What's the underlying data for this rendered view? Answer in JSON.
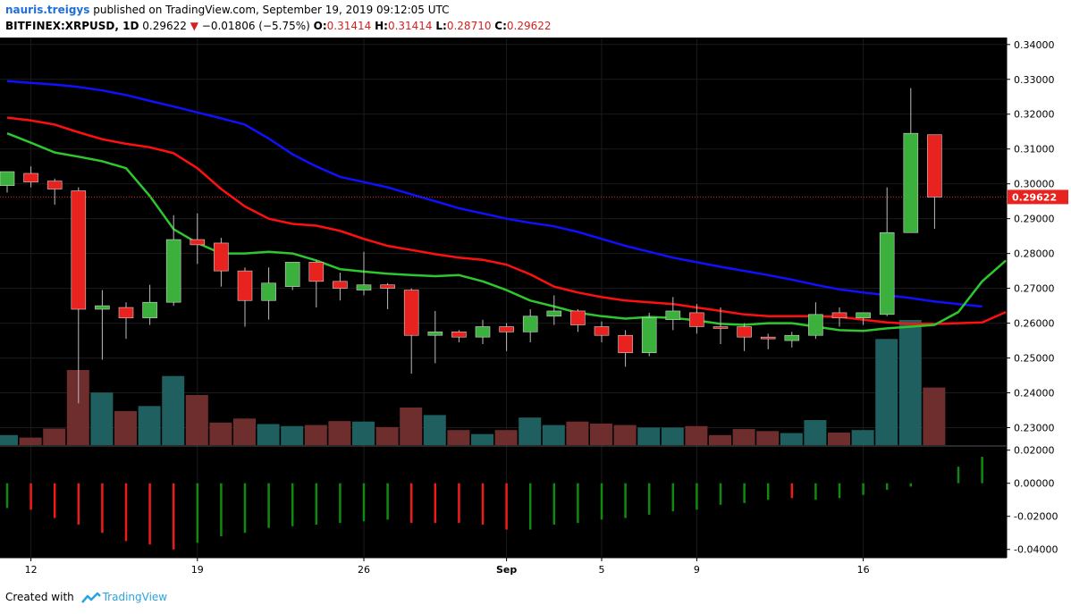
{
  "header": {
    "author": "nauris.treigys",
    "published_text": "published on TradingView.com, September 19, 2019 09:12:05 UTC",
    "symbol": "BITFINEX:XRPUSD, 1D",
    "last": "0.29622",
    "change": "−0.01806 (−5.75%)",
    "o_label": "O:",
    "o_value": "0.31414",
    "h_label": "H:",
    "h_value": "0.31414",
    "l_label": "L:",
    "l_value": "0.28710",
    "c_label": "C:",
    "c_value": "0.29622"
  },
  "footer": {
    "created_with": "Created with",
    "brand": "TradingView"
  },
  "colors": {
    "up": "#3cb03c",
    "down": "#e8231f",
    "ma_blue": "#1010ff",
    "ma_red": "#ff1010",
    "ma_green": "#2ec72e",
    "vol_up": "#1f5f5f",
    "vol_down": "#6e2e2e",
    "price_label_bg": "#e8231f"
  },
  "chart_data": {
    "type": "candlestick",
    "price_axis": {
      "min": 0.225,
      "max": 0.342,
      "ticks": [
        "0.34000",
        "0.33000",
        "0.32000",
        "0.31000",
        "0.30000",
        "0.29000",
        "0.28000",
        "0.27000",
        "0.26000",
        "0.25000",
        "0.24000",
        "0.23000"
      ]
    },
    "current_price_label": "0.29622",
    "current_price": 0.29622,
    "x_ticks": [
      {
        "index": 1,
        "label": "12"
      },
      {
        "index": 8,
        "label": "19"
      },
      {
        "index": 15,
        "label": "26"
      },
      {
        "index": 21,
        "label": "Sep"
      },
      {
        "index": 25,
        "label": "5"
      },
      {
        "index": 29,
        "label": "9"
      },
      {
        "index": 36,
        "label": "16"
      }
    ],
    "candles": [
      {
        "o": 0.2995,
        "h": 0.303,
        "l": 0.2975,
        "c": 0.3035
      },
      {
        "o": 0.303,
        "h": 0.305,
        "l": 0.299,
        "c": 0.3005
      },
      {
        "o": 0.3008,
        "h": 0.3015,
        "l": 0.294,
        "c": 0.2985
      },
      {
        "o": 0.298,
        "h": 0.299,
        "l": 0.237,
        "c": 0.264
      },
      {
        "o": 0.264,
        "h": 0.2695,
        "l": 0.2495,
        "c": 0.265
      },
      {
        "o": 0.2645,
        "h": 0.266,
        "l": 0.2555,
        "c": 0.2615
      },
      {
        "o": 0.2615,
        "h": 0.271,
        "l": 0.2595,
        "c": 0.266
      },
      {
        "o": 0.266,
        "h": 0.291,
        "l": 0.265,
        "c": 0.284
      },
      {
        "o": 0.284,
        "h": 0.2915,
        "l": 0.277,
        "c": 0.2825
      },
      {
        "o": 0.283,
        "h": 0.2845,
        "l": 0.2705,
        "c": 0.275
      },
      {
        "o": 0.275,
        "h": 0.276,
        "l": 0.259,
        "c": 0.2665
      },
      {
        "o": 0.2665,
        "h": 0.276,
        "l": 0.261,
        "c": 0.2715
      },
      {
        "o": 0.2705,
        "h": 0.2775,
        "l": 0.2695,
        "c": 0.2775
      },
      {
        "o": 0.2775,
        "h": 0.278,
        "l": 0.2645,
        "c": 0.272
      },
      {
        "o": 0.272,
        "h": 0.2745,
        "l": 0.2665,
        "c": 0.27
      },
      {
        "o": 0.2695,
        "h": 0.2805,
        "l": 0.268,
        "c": 0.271
      },
      {
        "o": 0.271,
        "h": 0.2715,
        "l": 0.264,
        "c": 0.27
      },
      {
        "o": 0.2695,
        "h": 0.27,
        "l": 0.2455,
        "c": 0.2565
      },
      {
        "o": 0.2565,
        "h": 0.2635,
        "l": 0.2485,
        "c": 0.2575
      },
      {
        "o": 0.2575,
        "h": 0.258,
        "l": 0.2545,
        "c": 0.256
      },
      {
        "o": 0.256,
        "h": 0.261,
        "l": 0.254,
        "c": 0.259
      },
      {
        "o": 0.259,
        "h": 0.26,
        "l": 0.252,
        "c": 0.2575
      },
      {
        "o": 0.2575,
        "h": 0.264,
        "l": 0.2545,
        "c": 0.262
      },
      {
        "o": 0.262,
        "h": 0.268,
        "l": 0.2595,
        "c": 0.2635
      },
      {
        "o": 0.2635,
        "h": 0.264,
        "l": 0.2575,
        "c": 0.2595
      },
      {
        "o": 0.259,
        "h": 0.2605,
        "l": 0.2545,
        "c": 0.2565
      },
      {
        "o": 0.2565,
        "h": 0.258,
        "l": 0.2475,
        "c": 0.2515
      },
      {
        "o": 0.2515,
        "h": 0.263,
        "l": 0.2505,
        "c": 0.2615
      },
      {
        "o": 0.261,
        "h": 0.2675,
        "l": 0.258,
        "c": 0.2635
      },
      {
        "o": 0.263,
        "h": 0.2655,
        "l": 0.257,
        "c": 0.259
      },
      {
        "o": 0.259,
        "h": 0.2645,
        "l": 0.254,
        "c": 0.2585
      },
      {
        "o": 0.259,
        "h": 0.26,
        "l": 0.252,
        "c": 0.256
      },
      {
        "o": 0.256,
        "h": 0.257,
        "l": 0.2525,
        "c": 0.2555
      },
      {
        "o": 0.255,
        "h": 0.2575,
        "l": 0.253,
        "c": 0.2565
      },
      {
        "o": 0.2565,
        "h": 0.266,
        "l": 0.2555,
        "c": 0.2625
      },
      {
        "o": 0.263,
        "h": 0.2645,
        "l": 0.259,
        "c": 0.2615
      },
      {
        "o": 0.2615,
        "h": 0.263,
        "l": 0.2595,
        "c": 0.263
      },
      {
        "o": 0.2625,
        "h": 0.299,
        "l": 0.262,
        "c": 0.286
      },
      {
        "o": 0.286,
        "h": 0.3275,
        "l": 0.286,
        "c": 0.3145
      },
      {
        "o": 0.3141,
        "h": 0.3141,
        "l": 0.2871,
        "c": 0.2962
      }
    ],
    "volume": [
      0.2,
      0.15,
      0.33,
      1.5,
      1.05,
      0.68,
      0.78,
      1.38,
      1.0,
      0.45,
      0.53,
      0.42,
      0.38,
      0.4,
      0.48,
      0.47,
      0.36,
      0.75,
      0.6,
      0.3,
      0.22,
      0.3,
      0.55,
      0.4,
      0.47,
      0.43,
      0.4,
      0.35,
      0.35,
      0.38,
      0.2,
      0.32,
      0.28,
      0.24,
      0.5,
      0.25,
      0.3,
      2.12,
      2.5,
      1.15
    ],
    "ma_blue": [
      0.3295,
      0.329,
      0.3285,
      0.3278,
      0.3268,
      0.3255,
      0.3238,
      0.3222,
      0.3205,
      0.3188,
      0.317,
      0.313,
      0.3085,
      0.305,
      0.302,
      0.3005,
      0.299,
      0.297,
      0.295,
      0.293,
      0.2915,
      0.29,
      0.2888,
      0.2878,
      0.2862,
      0.2842,
      0.2822,
      0.2805,
      0.2788,
      0.2775,
      0.2762,
      0.275,
      0.2738,
      0.2725,
      0.271,
      0.2697,
      0.2688,
      0.268,
      0.2672,
      0.2662,
      0.2655,
      0.2648
    ],
    "ma_red": [
      0.319,
      0.3182,
      0.317,
      0.3148,
      0.3128,
      0.3115,
      0.3105,
      0.3088,
      0.3045,
      0.2985,
      0.2935,
      0.29,
      0.2885,
      0.288,
      0.2865,
      0.2842,
      0.2822,
      0.281,
      0.2798,
      0.2788,
      0.2782,
      0.2768,
      0.274,
      0.2705,
      0.2688,
      0.2675,
      0.2665,
      0.266,
      0.2655,
      0.2645,
      0.2635,
      0.2625,
      0.262,
      0.262,
      0.262,
      0.2618,
      0.261,
      0.2602,
      0.2598,
      0.2598,
      0.26,
      0.2602,
      0.2632
    ],
    "ma_green": [
      0.3145,
      0.3118,
      0.309,
      0.3078,
      0.3065,
      0.3045,
      0.2965,
      0.287,
      0.283,
      0.28,
      0.28,
      0.2805,
      0.28,
      0.278,
      0.2755,
      0.2748,
      0.2742,
      0.2738,
      0.2735,
      0.2738,
      0.272,
      0.2695,
      0.2665,
      0.2648,
      0.263,
      0.262,
      0.2613,
      0.2618,
      0.2615,
      0.2608,
      0.2598,
      0.2595,
      0.26,
      0.26,
      0.259,
      0.258,
      0.2578,
      0.2585,
      0.259,
      0.2595,
      0.2632,
      0.272,
      0.278
    ],
    "histogram": {
      "axis": {
        "min": -0.045,
        "max": 0.022,
        "ticks": [
          "0.02000",
          "0.00000",
          "-0.02000",
          "-0.04000"
        ]
      },
      "values": [
        -0.015,
        -0.016,
        -0.021,
        -0.025,
        -0.03,
        -0.035,
        -0.037,
        -0.04,
        -0.036,
        -0.032,
        -0.03,
        -0.027,
        -0.026,
        -0.025,
        -0.024,
        -0.023,
        -0.022,
        -0.024,
        -0.024,
        -0.024,
        -0.025,
        -0.028,
        -0.028,
        -0.025,
        -0.024,
        -0.022,
        -0.021,
        -0.019,
        -0.017,
        -0.016,
        -0.013,
        -0.012,
        -0.01,
        -0.009,
        -0.01,
        -0.009,
        -0.007,
        -0.004,
        -0.002,
        0.0,
        0.01,
        0.016
      ],
      "signs": [
        "up",
        "down",
        "down",
        "down",
        "down",
        "down",
        "down",
        "down",
        "up",
        "up",
        "up",
        "up",
        "up",
        "up",
        "up",
        "up",
        "up",
        "down",
        "down",
        "down",
        "down",
        "down",
        "up",
        "up",
        "up",
        "up",
        "up",
        "up",
        "up",
        "up",
        "up",
        "up",
        "up",
        "down",
        "up",
        "up",
        "up",
        "up",
        "up",
        "up",
        "up",
        "up"
      ]
    }
  }
}
